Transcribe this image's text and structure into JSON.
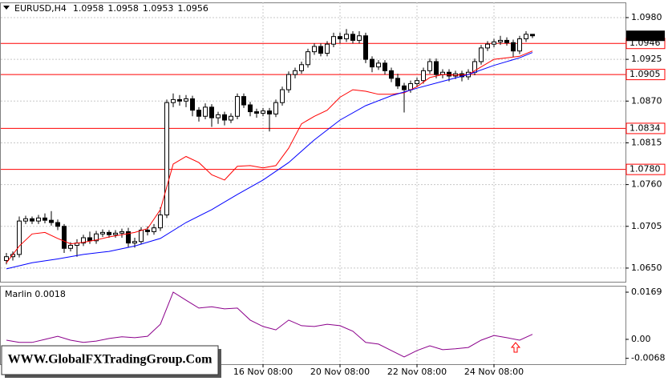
{
  "chart_data": [
    {
      "type": "candlestick",
      "title": "EURUSD,H4",
      "categories": [
        null,
        null,
        null,
        null,
        null,
        null,
        null,
        null,
        null,
        null,
        null,
        null,
        null,
        null,
        null,
        null,
        null,
        null,
        null,
        null,
        null,
        null,
        null,
        null,
        null,
        null,
        null,
        null,
        null,
        null,
        null,
        null,
        null,
        null,
        null,
        null,
        null,
        null,
        null,
        null,
        "16 Nov 08:00",
        null,
        null,
        null,
        null,
        null,
        null,
        null,
        null,
        null,
        null,
        null,
        "20 Nov 08:00",
        null,
        null,
        null,
        null,
        null,
        null,
        null,
        null,
        null,
        null,
        null,
        "22 Nov 08:00",
        null,
        null,
        null,
        null,
        null,
        null,
        null,
        null,
        null,
        null,
        null,
        "24 Nov 08:00",
        null,
        null,
        null,
        null,
        null,
        null
      ],
      "open": [
        1.066,
        1.0665,
        1.0668,
        1.0712,
        1.0715,
        1.0712,
        1.0716,
        1.0713,
        1.071,
        1.0705,
        1.0676,
        1.068,
        1.0683,
        1.069,
        1.0686,
        1.0695,
        1.0697,
        1.0694,
        1.0696,
        1.0698,
        1.0683,
        1.0685,
        1.07,
        1.0698,
        1.0703,
        1.072,
        1.0868,
        1.0872,
        1.087,
        1.0873,
        1.0858,
        1.085,
        1.0862,
        1.0848,
        1.0852,
        1.0845,
        1.085,
        1.0876,
        1.0865,
        1.0856,
        1.0854,
        1.0857,
        1.0853,
        1.0868,
        1.0885,
        1.0905,
        1.091,
        1.0918,
        1.0935,
        1.0942,
        1.0933,
        1.0945,
        1.0955,
        1.0952,
        1.0958,
        1.095,
        1.0956,
        1.0925,
        1.0915,
        1.092,
        1.091,
        1.09,
        1.089,
        1.0885,
        1.0893,
        1.0897,
        1.091,
        1.0922,
        1.0905,
        1.0908,
        1.0903,
        1.0906,
        1.0902,
        1.0908,
        1.0922,
        1.094,
        1.0945,
        1.0948,
        1.095,
        1.0947,
        1.0936,
        1.0952,
        1.0958
      ],
      "high": [
        1.067,
        1.0672,
        1.0718,
        1.0719,
        1.0718,
        1.072,
        1.0722,
        1.0725,
        1.0714,
        1.0708,
        1.0684,
        1.0688,
        1.0694,
        1.0698,
        1.0699,
        1.0701,
        1.07,
        1.07,
        1.0702,
        1.0703,
        1.069,
        1.0704,
        1.0705,
        1.0708,
        1.073,
        1.0872,
        1.088,
        1.0878,
        1.0878,
        1.0877,
        1.0862,
        1.0867,
        1.0866,
        1.0856,
        1.0856,
        1.0854,
        1.088,
        1.088,
        1.0869,
        1.086,
        1.0861,
        1.0861,
        1.0872,
        1.0889,
        1.0909,
        1.0914,
        1.0922,
        1.0939,
        1.0946,
        1.0946,
        1.0949,
        1.096,
        1.096,
        1.0965,
        1.0962,
        1.0962,
        1.096,
        1.0929,
        1.0924,
        1.0924,
        1.0914,
        1.0906,
        1.0894,
        1.0897,
        1.0901,
        1.0914,
        1.0926,
        1.0926,
        1.0912,
        1.0912,
        1.091,
        1.091,
        1.0912,
        1.0926,
        1.0944,
        1.0949,
        1.0952,
        1.0956,
        1.0954,
        1.0951,
        1.0956,
        1.0962,
        1.0958
      ],
      "low": [
        1.0655,
        1.066,
        1.0664,
        1.0708,
        1.0708,
        1.0708,
        1.0709,
        1.0706,
        1.07,
        1.067,
        1.0672,
        1.0665,
        1.0679,
        1.0682,
        1.0682,
        1.0691,
        1.069,
        1.069,
        1.069,
        1.0677,
        1.0677,
        1.0681,
        1.0693,
        1.0694,
        1.0699,
        1.0716,
        1.0862,
        1.0864,
        1.0862,
        1.085,
        1.0843,
        1.0846,
        1.0836,
        1.084,
        1.0838,
        1.0841,
        1.0846,
        1.0861,
        1.085,
        1.0848,
        1.085,
        1.083,
        1.0849,
        1.0864,
        1.0881,
        1.09,
        1.0906,
        1.0914,
        1.0931,
        1.0929,
        1.0929,
        1.0941,
        1.0946,
        1.0948,
        1.0946,
        1.0946,
        1.092,
        1.0908,
        1.0911,
        1.0905,
        1.0895,
        1.0886,
        1.0855,
        1.0881,
        1.0889,
        1.0893,
        1.0906,
        1.09,
        1.09,
        1.0896,
        1.0899,
        1.0896,
        1.0898,
        1.0904,
        1.0918,
        1.0936,
        1.0941,
        1.0944,
        1.0943,
        1.0928,
        1.0932,
        1.0948,
        1.0953
      ],
      "close": [
        1.0665,
        1.0668,
        1.0712,
        1.0715,
        1.0712,
        1.0716,
        1.0713,
        1.071,
        1.0705,
        1.0676,
        1.068,
        1.0683,
        1.069,
        1.0686,
        1.0695,
        1.0697,
        1.0694,
        1.0696,
        1.0698,
        1.0683,
        1.0685,
        1.07,
        1.0698,
        1.0703,
        1.072,
        1.0868,
        1.0872,
        1.087,
        1.0873,
        1.0858,
        1.085,
        1.0862,
        1.0848,
        1.0852,
        1.0845,
        1.085,
        1.0876,
        1.0865,
        1.0856,
        1.0854,
        1.0857,
        1.0853,
        1.0868,
        1.0885,
        1.0905,
        1.091,
        1.0918,
        1.0935,
        1.0942,
        1.0933,
        1.0945,
        1.0955,
        1.0952,
        1.0958,
        1.095,
        1.0956,
        1.0925,
        1.0915,
        1.092,
        1.091,
        1.09,
        1.089,
        1.0885,
        1.0893,
        1.0897,
        1.091,
        1.0922,
        1.0905,
        1.0908,
        1.0903,
        1.0906,
        1.0902,
        1.0908,
        1.0922,
        1.094,
        1.0945,
        1.0948,
        1.095,
        1.0947,
        1.0936,
        1.0952,
        1.0958,
        1.0956
      ],
      "ylim": [
        1.0632,
        1.1
      ],
      "yticks": [
        {
          "value": 1.098,
          "label": "1.0980"
        },
        1.0925,
        {
          "value": 1.087,
          "label": "1.0870"
        },
        1.0815,
        {
          "value": 1.076,
          "label": "1.0760"
        },
        1.0705,
        {
          "value": 1.065,
          "label": "1.0650"
        }
      ],
      "levels": [
        1.0946,
        1.0905,
        1.0834,
        {
          "value": 1.078,
          "label": "1.0780"
        }
      ],
      "level_color": "#ff0000",
      "last_price": 1.0956,
      "grid": true,
      "lines": [
        {
          "color": "#ff0000",
          "x": [
            0,
            2,
            4,
            6,
            8,
            10,
            12,
            14,
            16,
            18,
            20,
            22,
            24,
            26,
            28,
            30,
            32,
            34,
            36,
            38,
            40,
            42,
            44,
            46,
            48,
            50,
            52,
            54,
            56,
            58,
            60,
            62,
            64,
            66,
            68,
            70,
            72,
            74,
            76,
            78,
            80,
            82
          ],
          "values": [
            1.0657,
            1.0679,
            1.0695,
            1.0697,
            1.0689,
            1.0682,
            1.0684,
            1.0687,
            1.0691,
            1.0694,
            1.0697,
            1.0702,
            1.0727,
            1.0787,
            1.0797,
            1.0789,
            1.0773,
            1.0766,
            1.0784,
            1.0785,
            1.0782,
            1.0785,
            1.0808,
            1.084,
            1.085,
            1.0858,
            1.0875,
            1.0885,
            1.0883,
            1.0879,
            1.0879,
            1.0881,
            1.0889,
            1.0901,
            1.0905,
            1.0904,
            1.0905,
            1.0915,
            1.0925,
            1.0927,
            1.0929,
            1.0936
          ]
        },
        {
          "color": "#0000ff",
          "x": [
            0,
            4,
            8,
            12,
            16,
            20,
            24,
            28,
            32,
            36,
            40,
            44,
            48,
            52,
            56,
            60,
            64,
            68,
            72,
            76,
            80,
            82
          ],
          "values": [
            1.0649,
            1.0657,
            1.0662,
            1.0668,
            1.0672,
            1.0679,
            1.0689,
            1.071,
            1.0727,
            1.0747,
            1.0766,
            1.0789,
            1.0819,
            1.0845,
            1.0864,
            1.0877,
            1.0887,
            1.0896,
            1.0905,
            1.0917,
            1.0927,
            1.0934
          ]
        }
      ],
      "watermark": "WWW.GlobalFXTradingGroup.Com"
    },
    {
      "type": "line",
      "title": "Marlin 0.0018",
      "ylim": [
        -0.0089,
        0.0192
      ],
      "yticks": [
        0.0169,
        {
          "value": 0,
          "label": "0.00"
        },
        -0.0068
      ],
      "series": [
        {
          "color": "#8b008b",
          "x": [
            0,
            2,
            4,
            6,
            8,
            10,
            12,
            14,
            16,
            18,
            20,
            22,
            24,
            26,
            28,
            30,
            32,
            34,
            36,
            38,
            40,
            42,
            44,
            46,
            48,
            50,
            52,
            54,
            56,
            58,
            60,
            62,
            64,
            66,
            68,
            70,
            72,
            74,
            76,
            78,
            80,
            82
          ],
          "values": [
            -0.0003,
            -0.0011,
            -0.0011,
            0.0,
            0.0011,
            -0.0003,
            -0.0011,
            -0.0006,
            0.0003,
            0.0009,
            0.0006,
            0.0011,
            0.0054,
            0.0169,
            0.014,
            0.0112,
            0.0117,
            0.0109,
            0.0112,
            0.0069,
            0.0046,
            0.0034,
            0.0069,
            0.0049,
            0.0046,
            0.0054,
            0.0049,
            0.0029,
            -0.0011,
            -0.0017,
            -0.004,
            -0.0063,
            -0.004,
            -0.0023,
            -0.0037,
            -0.0034,
            -0.0029,
            -0.0003,
            0.0014,
            0.0006,
            -0.0003,
            0.0018
          ]
        }
      ]
    }
  ]
}
